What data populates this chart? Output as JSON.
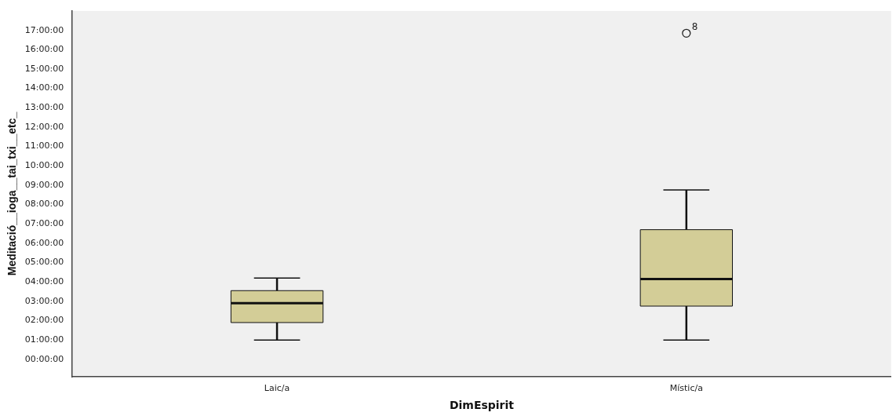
{
  "chart_data": {
    "type": "box",
    "xlabel": "DimEspirit",
    "ylabel": "Meditació__ioga__tai_txi__etc_",
    "categories": [
      "Laic/a",
      "Místic/a"
    ],
    "boxes": [
      {
        "low": 1.0,
        "q1": 1.9,
        "median": 2.9,
        "q3": 3.55,
        "high": 4.2
      },
      {
        "low": 1.0,
        "q1": 2.75,
        "median": 4.15,
        "q3": 6.7,
        "high": 8.75,
        "outliers": [
          16.85
        ]
      }
    ],
    "color": "#d3cd97",
    "ylim": [
      -0.9,
      18
    ],
    "yticks": [
      {
        "value": 0,
        "label": "00:00:00"
      },
      {
        "value": 1,
        "label": "01:00:00"
      },
      {
        "value": 2,
        "label": "02:00:00"
      },
      {
        "value": 3,
        "label": "03:00:00"
      },
      {
        "value": 4,
        "label": "04:00:00"
      },
      {
        "value": 5,
        "label": "05:00:00"
      },
      {
        "value": 6,
        "label": "06:00:00"
      },
      {
        "value": 7,
        "label": "07:00:00"
      },
      {
        "value": 8,
        "label": "08:00:00"
      },
      {
        "value": 9,
        "label": "09:00:00"
      },
      {
        "value": 10,
        "label": "10:00:00"
      },
      {
        "value": 11,
        "label": "11:00:00"
      },
      {
        "value": 12,
        "label": "12:00:00"
      },
      {
        "value": 13,
        "label": "13:00:00"
      },
      {
        "value": 14,
        "label": "14:00:00"
      },
      {
        "value": 15,
        "label": "15:00:00"
      },
      {
        "value": 16,
        "label": "16:00:00"
      },
      {
        "value": 17,
        "label": "17:00:00"
      }
    ],
    "annotations": [
      "8"
    ]
  }
}
